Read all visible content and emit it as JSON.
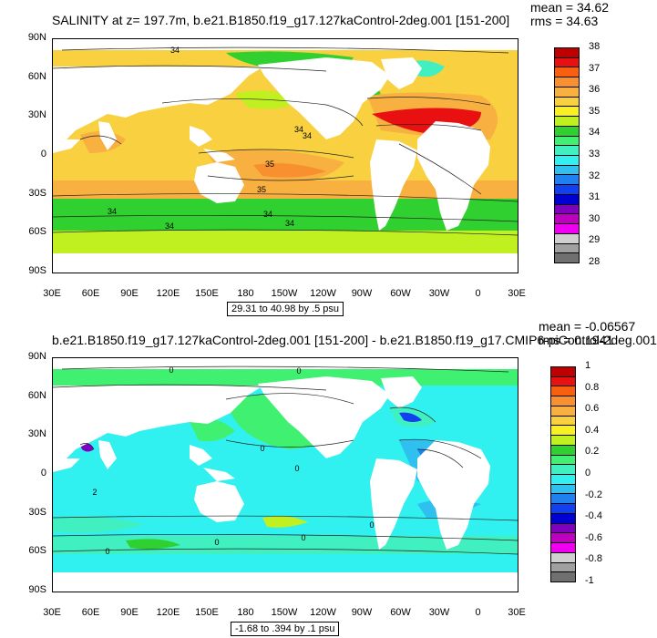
{
  "panels": [
    {
      "title": "SALINITY at z= 197.7m, b.e21.B1850.f19_g17.127kaControl-2deg.001 [151-200]",
      "stats": [
        "mean = 34.62",
        "rms = 34.63"
      ],
      "range_label": "29.31 to 40.98 by .5 psu",
      "colorbar_labels": [
        "38",
        "37",
        "36",
        "35",
        "34",
        "33",
        "32",
        "31",
        "30",
        "29",
        "28"
      ],
      "colorbar_colors": [
        "#c00000",
        "#e81010",
        "#f86010",
        "#f89030",
        "#f8b040",
        "#f8d040",
        "#f8f020",
        "#c0f020",
        "#30d030",
        "#40f070",
        "#40f0c0",
        "#30f0f0",
        "#30c0f0",
        "#2080f0",
        "#1040f0",
        "#0000d0",
        "#8000c0",
        "#c000c0",
        "#f000f0",
        "#d0d0d0",
        "#a0a0a0",
        "#707070"
      ],
      "contour_labels": [
        "34",
        "34",
        "34",
        "35",
        "35",
        "34",
        "34",
        "34",
        "34"
      ]
    },
    {
      "title": "b.e21.B1850.f19_g17.127kaControl-2deg.001 [151-200] - b.e21.B1850.f19_g17.CMIP6-piControl-2deg.001",
      "stats": [
        "mean = -0.06567",
        "rms = 0.1941"
      ],
      "range_label": "-1.68 to .394 by .1 psu",
      "colorbar_labels": [
        "1",
        "0.8",
        "0.6",
        "0.4",
        "0.2",
        "0",
        "-0.2",
        "-0.4",
        "-0.6",
        "-0.8",
        "-1"
      ],
      "colorbar_colors": [
        "#c00000",
        "#e81010",
        "#f86010",
        "#f89030",
        "#f8b040",
        "#f8d040",
        "#f8f020",
        "#c0f020",
        "#30d030",
        "#40f070",
        "#40f0c0",
        "#30f0f0",
        "#30c0f0",
        "#2080f0",
        "#1040f0",
        "#0000d0",
        "#8000c0",
        "#c000c0",
        "#f000f0",
        "#d0d0d0",
        "#a0a0a0",
        "#707070"
      ],
      "contour_labels": [
        "0",
        "0",
        "0",
        "0",
        "0",
        "0",
        "0",
        "0",
        "2"
      ]
    }
  ],
  "chart_data": [
    {
      "type": "heatmap",
      "title": "SALINITY at z= 197.7m, b.e21.B1850.f19_g17.127kaControl-2deg.001 [151-200]",
      "x_ticks": [
        "30E",
        "60E",
        "90E",
        "120E",
        "150E",
        "180",
        "150W",
        "120W",
        "90W",
        "60W",
        "30W",
        "0",
        "30E"
      ],
      "y_ticks": [
        "90N",
        "60N",
        "30N",
        "0",
        "30S",
        "60S",
        "90S"
      ],
      "value_range": [
        29.31,
        40.98
      ],
      "contour_interval": 0.5,
      "units": "psu",
      "mean": 34.62,
      "rms": 34.63,
      "colorbar": [
        28,
        29,
        30,
        31,
        32,
        33,
        34,
        35,
        36,
        37,
        38
      ]
    },
    {
      "type": "heatmap",
      "title": "b.e21.B1850.f19_g17.127kaControl-2deg.001 [151-200] - b.e21.B1850.f19_g17.CMIP6-piControl-2deg.001",
      "x_ticks": [
        "30E",
        "60E",
        "90E",
        "120E",
        "150E",
        "180",
        "150W",
        "120W",
        "90W",
        "60W",
        "30W",
        "0",
        "30E"
      ],
      "y_ticks": [
        "90N",
        "60N",
        "30N",
        "0",
        "30S",
        "60S",
        "90S"
      ],
      "value_range": [
        -1.68,
        0.394
      ],
      "contour_interval": 0.1,
      "units": "psu",
      "mean": -0.06567,
      "rms": 0.1941,
      "colorbar": [
        -1,
        -0.8,
        -0.6,
        -0.4,
        -0.2,
        0,
        0.2,
        0.4,
        0.6,
        0.8,
        1
      ]
    }
  ]
}
